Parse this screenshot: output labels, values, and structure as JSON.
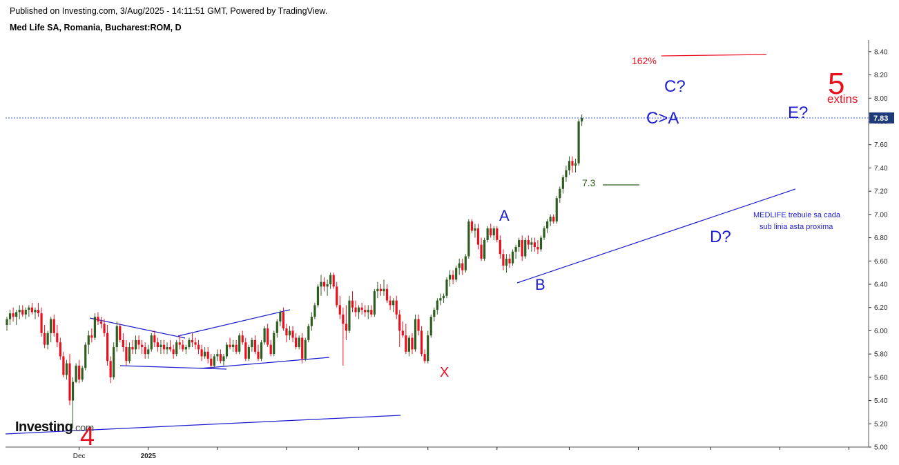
{
  "header": {
    "published": "Published on Investing.com, 3/Aug/2025 - 14:11:51 GMT, Powered by TradingView.",
    "symbol": "Med Life SA, Romania, Bucharest:ROM, D"
  },
  "logo": {
    "text": "Investing",
    "suffix": ".com"
  },
  "colors": {
    "up": "#2e5e1f",
    "down": "#e8101e",
    "blue": "#1c1ccf",
    "red": "#e8101e",
    "axis": "#222222"
  },
  "chart_data": {
    "type": "candlestick",
    "title": "Med Life SA, Romania, Bucharest:ROM, D",
    "ylim": [
      5.0,
      8.5
    ],
    "y_ticks": [
      "5.00",
      "5.20",
      "5.40",
      "5.60",
      "5.80",
      "6.00",
      "6.20",
      "6.40",
      "6.60",
      "6.80",
      "7.00",
      "7.20",
      "7.40",
      "7.60",
      "7.80",
      "8.00",
      "8.20",
      "8.40"
    ],
    "x_labels": [
      {
        "text": "Dec",
        "bar": 23
      },
      {
        "text": "2025",
        "bar": 45
      }
    ],
    "x_tick_bars": [
      23,
      45,
      67,
      89,
      112,
      134,
      156,
      179,
      201,
      224,
      246,
      268,
      292
    ],
    "last_price": "7.83",
    "last_price_value": 7.83,
    "candles": [
      [
        6.05,
        6.12,
        6.0,
        6.1
      ],
      [
        6.1,
        6.18,
        6.05,
        6.15
      ],
      [
        6.15,
        6.2,
        6.08,
        6.12
      ],
      [
        6.12,
        6.18,
        6.05,
        6.16
      ],
      [
        6.16,
        6.22,
        6.1,
        6.18
      ],
      [
        6.18,
        6.22,
        6.12,
        6.14
      ],
      [
        6.14,
        6.2,
        6.1,
        6.18
      ],
      [
        6.18,
        6.22,
        6.12,
        6.2
      ],
      [
        6.2,
        6.24,
        6.14,
        6.16
      ],
      [
        6.16,
        6.2,
        6.1,
        6.18
      ],
      [
        6.18,
        6.24,
        6.12,
        6.15
      ],
      [
        6.15,
        6.2,
        5.95,
        5.98
      ],
      [
        5.98,
        6.05,
        5.85,
        5.88
      ],
      [
        5.88,
        6.0,
        5.84,
        5.98
      ],
      [
        5.98,
        6.12,
        5.9,
        6.1
      ],
      [
        6.1,
        6.14,
        5.95,
        5.98
      ],
      [
        5.98,
        6.05,
        5.86,
        5.9
      ],
      [
        5.9,
        5.94,
        5.75,
        5.78
      ],
      [
        5.78,
        5.82,
        5.6,
        5.62
      ],
      [
        5.62,
        5.75,
        5.58,
        5.72
      ],
      [
        5.72,
        5.8,
        5.36,
        5.4
      ],
      [
        5.4,
        5.6,
        5.16,
        5.56
      ],
      [
        5.56,
        5.72,
        5.55,
        5.7
      ],
      [
        5.7,
        5.75,
        5.55,
        5.58
      ],
      [
        5.58,
        5.7,
        5.56,
        5.68
      ],
      [
        5.68,
        5.9,
        5.66,
        5.88
      ],
      [
        5.88,
        6.0,
        5.8,
        5.96
      ],
      [
        5.96,
        6.02,
        5.9,
        5.94
      ],
      [
        5.94,
        6.15,
        5.92,
        6.12
      ],
      [
        6.12,
        6.16,
        6.05,
        6.08
      ],
      [
        6.08,
        6.12,
        6.02,
        6.06
      ],
      [
        6.06,
        6.1,
        5.95,
        5.98
      ],
      [
        5.98,
        6.05,
        5.7,
        5.74
      ],
      [
        5.74,
        5.78,
        5.55,
        5.6
      ],
      [
        5.6,
        5.9,
        5.58,
        5.86
      ],
      [
        5.86,
        6.08,
        5.82,
        6.04
      ],
      [
        6.04,
        6.06,
        5.9,
        5.92
      ],
      [
        5.92,
        5.98,
        5.82,
        5.86
      ],
      [
        5.86,
        5.92,
        5.7,
        5.74
      ],
      [
        5.74,
        5.9,
        5.72,
        5.86
      ],
      [
        5.86,
        5.92,
        5.8,
        5.84
      ],
      [
        5.84,
        5.96,
        5.8,
        5.92
      ],
      [
        5.92,
        5.96,
        5.84,
        5.88
      ],
      [
        5.88,
        5.92,
        5.8,
        5.86
      ],
      [
        5.86,
        5.9,
        5.76,
        5.8
      ],
      [
        5.8,
        5.88,
        5.76,
        5.84
      ],
      [
        5.84,
        5.98,
        5.82,
        5.96
      ],
      [
        5.96,
        6.0,
        5.86,
        5.9
      ],
      [
        5.9,
        5.94,
        5.82,
        5.86
      ],
      [
        5.86,
        5.92,
        5.8,
        5.88
      ],
      [
        5.88,
        5.92,
        5.8,
        5.84
      ],
      [
        5.84,
        5.9,
        5.8,
        5.86
      ],
      [
        5.86,
        5.92,
        5.82,
        5.84
      ],
      [
        5.84,
        5.88,
        5.76,
        5.8
      ],
      [
        5.8,
        5.92,
        5.78,
        5.9
      ],
      [
        5.9,
        5.96,
        5.84,
        5.88
      ],
      [
        5.88,
        5.92,
        5.82,
        5.84
      ],
      [
        5.84,
        5.88,
        5.8,
        5.86
      ],
      [
        5.86,
        5.94,
        5.84,
        5.92
      ],
      [
        5.92,
        5.98,
        5.86,
        5.9
      ],
      [
        5.9,
        5.94,
        5.84,
        5.88
      ],
      [
        5.88,
        5.92,
        5.8,
        5.84
      ],
      [
        5.84,
        5.88,
        5.74,
        5.78
      ],
      [
        5.78,
        5.86,
        5.76,
        5.82
      ],
      [
        5.82,
        5.86,
        5.72,
        5.76
      ],
      [
        5.76,
        5.8,
        5.68,
        5.7
      ],
      [
        5.7,
        5.8,
        5.68,
        5.78
      ],
      [
        5.78,
        5.84,
        5.74,
        5.8
      ],
      [
        5.8,
        5.84,
        5.72,
        5.74
      ],
      [
        5.74,
        5.8,
        5.7,
        5.78
      ],
      [
        5.78,
        5.9,
        5.76,
        5.88
      ],
      [
        5.88,
        5.94,
        5.84,
        5.86
      ],
      [
        5.86,
        5.92,
        5.82,
        5.88
      ],
      [
        5.88,
        5.92,
        5.8,
        5.82
      ],
      [
        5.82,
        5.98,
        5.8,
        5.96
      ],
      [
        5.96,
        6.0,
        5.88,
        5.9
      ],
      [
        5.9,
        5.94,
        5.74,
        5.76
      ],
      [
        5.76,
        5.88,
        5.74,
        5.86
      ],
      [
        5.86,
        5.94,
        5.82,
        5.92
      ],
      [
        5.92,
        5.96,
        5.8,
        5.82
      ],
      [
        5.82,
        5.88,
        5.74,
        5.76
      ],
      [
        5.76,
        5.92,
        5.74,
        5.9
      ],
      [
        5.9,
        6.04,
        5.88,
        6.02
      ],
      [
        6.02,
        6.06,
        5.86,
        5.88
      ],
      [
        5.88,
        5.92,
        5.78,
        5.8
      ],
      [
        5.8,
        6.0,
        5.78,
        5.98
      ],
      [
        5.98,
        6.1,
        5.94,
        6.08
      ],
      [
        6.08,
        6.18,
        6.04,
        6.16
      ],
      [
        6.16,
        6.2,
        6.0,
        6.02
      ],
      [
        6.02,
        6.06,
        5.9,
        5.96
      ],
      [
        5.96,
        6.04,
        5.92,
        6.0
      ],
      [
        6.0,
        6.04,
        5.9,
        5.94
      ],
      [
        5.94,
        5.98,
        5.84,
        5.86
      ],
      [
        5.86,
        5.96,
        5.84,
        5.94
      ],
      [
        5.94,
        5.98,
        5.72,
        5.76
      ],
      [
        5.76,
        5.94,
        5.74,
        5.92
      ],
      [
        5.92,
        6.06,
        5.9,
        6.04
      ],
      [
        6.04,
        6.16,
        6.0,
        6.12
      ],
      [
        6.12,
        6.24,
        6.1,
        6.22
      ],
      [
        6.22,
        6.4,
        6.2,
        6.38
      ],
      [
        6.38,
        6.48,
        6.3,
        6.42
      ],
      [
        6.42,
        6.46,
        6.34,
        6.38
      ],
      [
        6.38,
        6.44,
        6.3,
        6.4
      ],
      [
        6.4,
        6.5,
        6.36,
        6.48
      ],
      [
        6.48,
        6.5,
        6.36,
        6.38
      ],
      [
        6.38,
        6.42,
        6.2,
        6.22
      ],
      [
        6.22,
        6.3,
        6.1,
        6.14
      ],
      [
        6.14,
        6.2,
        5.7,
        6.06
      ],
      [
        6.06,
        6.22,
        5.92,
        6.0
      ],
      [
        6.0,
        6.3,
        5.98,
        6.26
      ],
      [
        6.26,
        6.34,
        6.16,
        6.2
      ],
      [
        6.2,
        6.26,
        6.12,
        6.16
      ],
      [
        6.16,
        6.22,
        6.1,
        6.2
      ],
      [
        6.2,
        6.24,
        6.14,
        6.18
      ],
      [
        6.18,
        6.22,
        6.12,
        6.16
      ],
      [
        6.16,
        6.22,
        6.1,
        6.18
      ],
      [
        6.18,
        6.22,
        6.12,
        6.14
      ],
      [
        6.14,
        6.36,
        6.12,
        6.34
      ],
      [
        6.34,
        6.42,
        6.28,
        6.36
      ],
      [
        6.36,
        6.4,
        6.3,
        6.34
      ],
      [
        6.34,
        6.44,
        6.3,
        6.36
      ],
      [
        6.36,
        6.4,
        6.24,
        6.26
      ],
      [
        6.26,
        6.3,
        6.18,
        6.22
      ],
      [
        6.22,
        6.28,
        6.16,
        6.26
      ],
      [
        6.26,
        6.3,
        6.1,
        6.14
      ],
      [
        6.14,
        6.18,
        5.86,
        6.0
      ],
      [
        6.0,
        6.08,
        5.94,
        5.96
      ],
      [
        5.96,
        6.06,
        5.8,
        5.82
      ],
      [
        5.82,
        5.96,
        5.78,
        5.94
      ],
      [
        5.94,
        5.98,
        5.8,
        5.84
      ],
      [
        5.84,
        6.14,
        5.82,
        6.1
      ],
      [
        6.1,
        6.14,
        5.96,
        6.0
      ],
      [
        6.0,
        6.04,
        5.78,
        5.8
      ],
      [
        5.8,
        5.84,
        5.72,
        5.74
      ],
      [
        5.74,
        6.0,
        5.72,
        5.96
      ],
      [
        5.96,
        6.14,
        5.94,
        6.12
      ],
      [
        6.12,
        6.2,
        6.08,
        6.18
      ],
      [
        6.18,
        6.28,
        6.14,
        6.26
      ],
      [
        6.26,
        6.32,
        6.22,
        6.28
      ],
      [
        6.28,
        6.32,
        6.24,
        6.3
      ],
      [
        6.3,
        6.46,
        6.28,
        6.44
      ],
      [
        6.44,
        6.52,
        6.38,
        6.48
      ],
      [
        6.48,
        6.52,
        6.4,
        6.44
      ],
      [
        6.44,
        6.56,
        6.42,
        6.54
      ],
      [
        6.54,
        6.62,
        6.48,
        6.58
      ],
      [
        6.58,
        6.62,
        6.48,
        6.52
      ],
      [
        6.52,
        6.66,
        6.5,
        6.64
      ],
      [
        6.64,
        6.96,
        6.62,
        6.94
      ],
      [
        6.94,
        6.96,
        6.84,
        6.86
      ],
      [
        6.86,
        6.92,
        6.8,
        6.88
      ],
      [
        6.88,
        6.92,
        6.7,
        6.74
      ],
      [
        6.74,
        6.8,
        6.6,
        6.62
      ],
      [
        6.62,
        6.8,
        6.6,
        6.78
      ],
      [
        6.78,
        6.9,
        6.76,
        6.88
      ],
      [
        6.88,
        6.92,
        6.8,
        6.82
      ],
      [
        6.82,
        6.9,
        6.78,
        6.88
      ],
      [
        6.88,
        6.9,
        6.76,
        6.78
      ],
      [
        6.78,
        6.82,
        6.62,
        6.66
      ],
      [
        6.66,
        6.7,
        6.52,
        6.56
      ],
      [
        6.56,
        6.66,
        6.5,
        6.62
      ],
      [
        6.62,
        6.66,
        6.54,
        6.58
      ],
      [
        6.58,
        6.7,
        6.56,
        6.68
      ],
      [
        6.68,
        6.74,
        6.62,
        6.72
      ],
      [
        6.72,
        6.8,
        6.68,
        6.78
      ],
      [
        6.78,
        6.82,
        6.6,
        6.64
      ],
      [
        6.64,
        6.8,
        6.62,
        6.78
      ],
      [
        6.78,
        6.82,
        6.7,
        6.74
      ],
      [
        6.74,
        6.8,
        6.68,
        6.76
      ],
      [
        6.76,
        6.8,
        6.68,
        6.72
      ],
      [
        6.72,
        6.78,
        6.66,
        6.7
      ],
      [
        6.7,
        6.82,
        6.68,
        6.8
      ],
      [
        6.8,
        6.9,
        6.78,
        6.88
      ],
      [
        6.88,
        6.96,
        6.84,
        6.94
      ],
      [
        6.94,
        7.0,
        6.9,
        6.98
      ],
      [
        6.98,
        7.0,
        6.92,
        6.94
      ],
      [
        6.94,
        7.16,
        6.92,
        7.14
      ],
      [
        7.14,
        7.24,
        7.1,
        7.22
      ],
      [
        7.22,
        7.34,
        7.18,
        7.32
      ],
      [
        7.32,
        7.42,
        7.28,
        7.38
      ],
      [
        7.38,
        7.5,
        7.34,
        7.46
      ],
      [
        7.46,
        7.5,
        7.36,
        7.42
      ],
      [
        7.42,
        7.48,
        7.36,
        7.44
      ],
      [
        7.44,
        7.82,
        7.42,
        7.8
      ],
      [
        7.8,
        7.86,
        7.76,
        7.83
      ]
    ]
  },
  "annotations": {
    "wave4": "4",
    "wave5": "5",
    "extins": "extins",
    "fib": "162%",
    "X": "X",
    "A": "A",
    "B": "B",
    "C_gt_A": "C>A",
    "C_q": "C?",
    "D_q": "D?",
    "E_q": "E?",
    "level_73": "7.3",
    "note_line1": "MEDLIFE trebuie sa cada",
    "note_line2": "sub linia asta proxima"
  }
}
